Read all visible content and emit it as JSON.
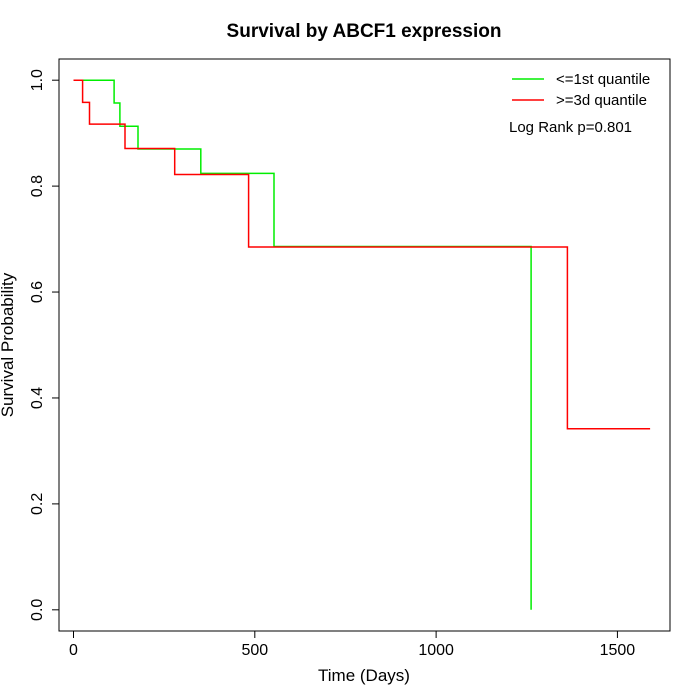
{
  "chart_data": {
    "type": "line",
    "step": true,
    "title": "Survival by ABCF1 expression",
    "xlabel": "Time (Days)",
    "ylabel": "Survival Probability",
    "xlim": [
      -40,
      1645
    ],
    "ylim": [
      -0.04,
      1.04
    ],
    "x_ticks": [
      0,
      500,
      1000,
      1500
    ],
    "y_ticks": [
      0.0,
      0.2,
      0.4,
      0.6,
      0.8,
      1.0
    ],
    "x_tick_labels": [
      "0",
      "500",
      "1000",
      "1500"
    ],
    "y_tick_labels": [
      "0.0",
      "0.2",
      "0.4",
      "0.6",
      "0.8",
      "1.0"
    ],
    "grid": false,
    "legend_position": "top-right",
    "annotation": "Log Rank p=0.801",
    "series": [
      {
        "name": "<=1st quantile",
        "color": "#00ee00",
        "points": [
          [
            0,
            1.0
          ],
          [
            112,
            1.0
          ],
          [
            112,
            0.957
          ],
          [
            128,
            0.957
          ],
          [
            128,
            0.913
          ],
          [
            178,
            0.913
          ],
          [
            178,
            0.87
          ],
          [
            351,
            0.87
          ],
          [
            351,
            0.824
          ],
          [
            553,
            0.824
          ],
          [
            553,
            0.686
          ],
          [
            1262,
            0.686
          ],
          [
            1262,
            0.0
          ]
        ]
      },
      {
        "name": ">=3d quantile",
        "color": "#ff0000",
        "points": [
          [
            0,
            1.0
          ],
          [
            25,
            1.0
          ],
          [
            25,
            0.958
          ],
          [
            44,
            0.958
          ],
          [
            44,
            0.917
          ],
          [
            142,
            0.917
          ],
          [
            142,
            0.871
          ],
          [
            279,
            0.871
          ],
          [
            279,
            0.822
          ],
          [
            483,
            0.822
          ],
          [
            483,
            0.685
          ],
          [
            1362,
            0.685
          ],
          [
            1362,
            0.342
          ],
          [
            1590,
            0.342
          ]
        ]
      }
    ]
  }
}
